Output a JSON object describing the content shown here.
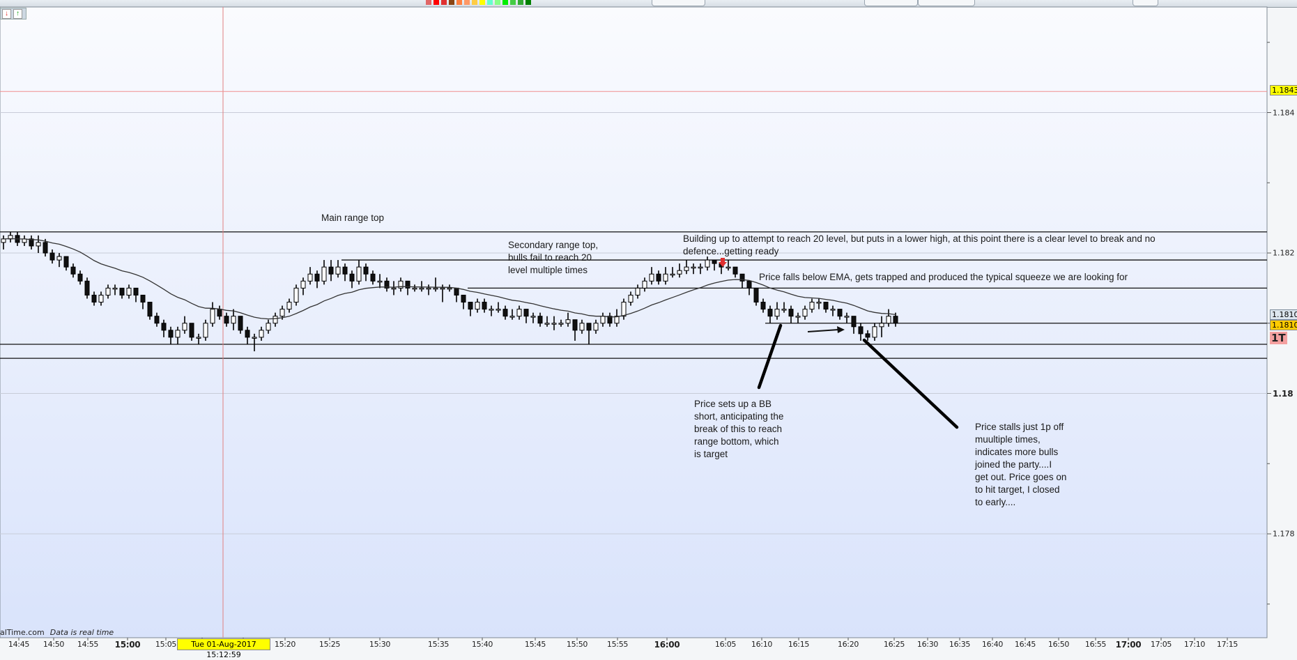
{
  "toolbar": {
    "color_swatches": [
      "#e06666",
      "#ff0000",
      "#e03030",
      "#8b4513",
      "#ff8040",
      "#ff9966",
      "#ffcc44",
      "#ffff00",
      "#66ffcc",
      "#88ff88",
      "#00ee00",
      "#44cc44",
      "#33aa33",
      "#008000"
    ]
  },
  "order_buttons": {
    "sell_icon": "red-down-arrow-icon",
    "buy_icon": "green-up-arrow-icon",
    "sell_glyph": "↓",
    "buy_glyph": "↑"
  },
  "footer": {
    "source": "alTime.com",
    "status": "Data is real time"
  },
  "crosshair": {
    "date_label": "Tue 01-Aug-2017 15:12:59",
    "price": 1.1843,
    "price_label": "1.1843",
    "color": "#ff0000"
  },
  "price_labels": {
    "last_price": "1.18109",
    "level": "1.1810",
    "timeframe": "1T"
  },
  "annotations": {
    "main_range_top": [
      "Main range top"
    ],
    "secondary_range_top": [
      "Secondary range top,",
      "bulls fail to reach 20",
      "level multiple times"
    ],
    "building_up": [
      "Building up to attempt to reach 20 level, but puts in a lower high, at this point there is a clear level to break and no",
      "defence...getting ready"
    ],
    "ema_note": [
      "Price falls below EMA, gets trapped and produced the typical squeeze we are looking for"
    ],
    "bb_short": [
      "Price sets up a BB",
      "short, anticipating the",
      "break of this to reach",
      "range bottom, which",
      "is target"
    ],
    "stalls": [
      "Price stalls just 1p off",
      "muultiple times,",
      "indicates more bulls",
      "joined the party....I",
      "get out. Price goes on",
      "to hit target, I closed",
      "to early...."
    ]
  },
  "chart_data": {
    "type": "candlestick",
    "indicator": "EMA",
    "y_ticks": [
      "1.184",
      "1.182",
      "1.18",
      "1.178"
    ],
    "y_tick_values": [
      1.184,
      1.182,
      1.18,
      1.178
    ],
    "x_ticks": [
      "14:45",
      "14:50",
      "14:55",
      "15:00",
      "15:05",
      "15:20",
      "15:25",
      "15:30",
      "15:35",
      "15:40",
      "15:45",
      "15:50",
      "15:55",
      "16:00",
      "16:05",
      "16:10",
      "16:15",
      "16:20",
      "16:25",
      "16:30",
      "16:35",
      "16:40",
      "16:45",
      "16:50",
      "16:55",
      "17:00",
      "17:05",
      "17:10",
      "17:15"
    ],
    "x_ticks_bold": [
      "15:00",
      "16:00",
      "17:00"
    ],
    "horizontal_levels": [
      1.1823,
      1.1819,
      1.1815,
      1.181,
      1.1807,
      1.1805
    ],
    "candles_ohlc": [
      [
        1.18215,
        1.18225,
        1.18205,
        1.1822
      ],
      [
        1.1822,
        1.1823,
        1.18215,
        1.18225
      ],
      [
        1.18225,
        1.1823,
        1.1821,
        1.18215
      ],
      [
        1.18215,
        1.18225,
        1.1821,
        1.1822
      ],
      [
        1.1822,
        1.18225,
        1.18205,
        1.1821
      ],
      [
        1.1821,
        1.18225,
        1.182,
        1.18215
      ],
      [
        1.18215,
        1.1822,
        1.18195,
        1.182
      ],
      [
        1.182,
        1.18205,
        1.18185,
        1.1819
      ],
      [
        1.1819,
        1.182,
        1.1818,
        1.18195
      ],
      [
        1.18195,
        1.18195,
        1.18175,
        1.1818
      ],
      [
        1.1818,
        1.18185,
        1.18165,
        1.1817
      ],
      [
        1.1817,
        1.18175,
        1.18155,
        1.1816
      ],
      [
        1.1816,
        1.18165,
        1.18135,
        1.1814
      ],
      [
        1.1814,
        1.18145,
        1.18125,
        1.1813
      ],
      [
        1.1813,
        1.18145,
        1.18125,
        1.1814
      ],
      [
        1.1814,
        1.18155,
        1.18135,
        1.1815
      ],
      [
        1.1815,
        1.18155,
        1.1814,
        1.1815
      ],
      [
        1.1815,
        1.1815,
        1.18135,
        1.1814
      ],
      [
        1.1814,
        1.18155,
        1.18135,
        1.1815
      ],
      [
        1.1815,
        1.1815,
        1.1813,
        1.1814
      ],
      [
        1.1814,
        1.1814,
        1.1812,
        1.1813
      ],
      [
        1.1813,
        1.1813,
        1.18105,
        1.1811
      ],
      [
        1.1811,
        1.18115,
        1.18095,
        1.181
      ],
      [
        1.181,
        1.18105,
        1.1808,
        1.1809
      ],
      [
        1.1809,
        1.18095,
        1.1807,
        1.1808
      ],
      [
        1.1808,
        1.18095,
        1.1807,
        1.1809
      ],
      [
        1.1809,
        1.1811,
        1.18085,
        1.181
      ],
      [
        1.181,
        1.181,
        1.18075,
        1.1808
      ],
      [
        1.1808,
        1.18085,
        1.1807,
        1.1808
      ],
      [
        1.1808,
        1.18105,
        1.18075,
        1.181
      ],
      [
        1.181,
        1.1813,
        1.18095,
        1.1812
      ],
      [
        1.1812,
        1.18125,
        1.18105,
        1.1811
      ],
      [
        1.1811,
        1.18115,
        1.18095,
        1.181
      ],
      [
        1.181,
        1.1812,
        1.1809,
        1.1811
      ],
      [
        1.1811,
        1.1811,
        1.18085,
        1.1809
      ],
      [
        1.1809,
        1.18095,
        1.1807,
        1.1808
      ],
      [
        1.1808,
        1.18085,
        1.1806,
        1.1808
      ],
      [
        1.1808,
        1.18095,
        1.18075,
        1.1809
      ],
      [
        1.1809,
        1.18105,
        1.18085,
        1.181
      ],
      [
        1.181,
        1.18115,
        1.18095,
        1.1811
      ],
      [
        1.1811,
        1.18125,
        1.18105,
        1.1812
      ],
      [
        1.1812,
        1.18135,
        1.18115,
        1.1813
      ],
      [
        1.1813,
        1.18155,
        1.18125,
        1.1815
      ],
      [
        1.1815,
        1.18165,
        1.1814,
        1.1816
      ],
      [
        1.1816,
        1.1818,
        1.18155,
        1.1817
      ],
      [
        1.1817,
        1.18175,
        1.1815,
        1.1816
      ],
      [
        1.1816,
        1.1819,
        1.18155,
        1.1818
      ],
      [
        1.1818,
        1.1819,
        1.1816,
        1.1817
      ],
      [
        1.1817,
        1.1819,
        1.18165,
        1.1818
      ],
      [
        1.1818,
        1.18185,
        1.1816,
        1.1817
      ],
      [
        1.1817,
        1.18175,
        1.1815,
        1.1816
      ],
      [
        1.1816,
        1.1819,
        1.18155,
        1.1818
      ],
      [
        1.1818,
        1.18185,
        1.1816,
        1.1817
      ],
      [
        1.1817,
        1.18175,
        1.18155,
        1.1816
      ],
      [
        1.1816,
        1.1817,
        1.1815,
        1.1816
      ],
      [
        1.1816,
        1.18165,
        1.18145,
        1.1815
      ],
      [
        1.1815,
        1.1816,
        1.1814,
        1.1815
      ],
      [
        1.1815,
        1.18165,
        1.18145,
        1.1816
      ],
      [
        1.1816,
        1.1816,
        1.1814,
        1.1815
      ],
      [
        1.1815,
        1.18155,
        1.18145,
        1.1815
      ],
      [
        1.1815,
        1.1816,
        1.18145,
        1.1815
      ],
      [
        1.1815,
        1.18155,
        1.1814,
        1.1815
      ],
      [
        1.1815,
        1.18165,
        1.18145,
        1.1815
      ],
      [
        1.1815,
        1.18155,
        1.1813,
        1.1815
      ],
      [
        1.1815,
        1.18155,
        1.18145,
        1.1815
      ],
      [
        1.1815,
        1.1815,
        1.1813,
        1.1814
      ],
      [
        1.1814,
        1.1814,
        1.1812,
        1.1813
      ],
      [
        1.1813,
        1.1813,
        1.1811,
        1.1812
      ],
      [
        1.1812,
        1.18135,
        1.18115,
        1.1813
      ],
      [
        1.1813,
        1.18135,
        1.18115,
        1.1812
      ],
      [
        1.1812,
        1.18125,
        1.1811,
        1.1812
      ],
      [
        1.1812,
        1.1813,
        1.18115,
        1.1812
      ],
      [
        1.1812,
        1.18125,
        1.18105,
        1.1811
      ],
      [
        1.1811,
        1.1812,
        1.18105,
        1.1811
      ],
      [
        1.1811,
        1.18125,
        1.18105,
        1.1812
      ],
      [
        1.1812,
        1.1812,
        1.181,
        1.1811
      ],
      [
        1.1811,
        1.18115,
        1.181,
        1.1811
      ],
      [
        1.1811,
        1.18115,
        1.18095,
        1.181
      ],
      [
        1.181,
        1.1811,
        1.18095,
        1.181
      ],
      [
        1.181,
        1.1811,
        1.1809,
        1.181
      ],
      [
        1.181,
        1.18105,
        1.18095,
        1.181
      ],
      [
        1.181,
        1.18115,
        1.18095,
        1.18105
      ],
      [
        1.18105,
        1.18105,
        1.18075,
        1.1809
      ],
      [
        1.1809,
        1.18105,
        1.18085,
        1.181
      ],
      [
        1.181,
        1.181,
        1.1807,
        1.1809
      ],
      [
        1.1809,
        1.18105,
        1.18085,
        1.181
      ],
      [
        1.181,
        1.18115,
        1.18095,
        1.1811
      ],
      [
        1.1811,
        1.18115,
        1.18095,
        1.181
      ],
      [
        1.181,
        1.1812,
        1.18095,
        1.1811
      ],
      [
        1.1811,
        1.18135,
        1.18105,
        1.1813
      ],
      [
        1.1813,
        1.18145,
        1.18125,
        1.1814
      ],
      [
        1.1814,
        1.18155,
        1.18135,
        1.1815
      ],
      [
        1.1815,
        1.18165,
        1.18145,
        1.1816
      ],
      [
        1.1816,
        1.1818,
        1.18155,
        1.1817
      ],
      [
        1.1817,
        1.18175,
        1.18155,
        1.1816
      ],
      [
        1.1816,
        1.1818,
        1.18155,
        1.1817
      ],
      [
        1.1817,
        1.1818,
        1.18165,
        1.1817
      ],
      [
        1.1817,
        1.18185,
        1.18165,
        1.18175
      ],
      [
        1.18175,
        1.1819,
        1.1817,
        1.1818
      ],
      [
        1.1818,
        1.18185,
        1.1817,
        1.1818
      ],
      [
        1.1818,
        1.18185,
        1.1817,
        1.1818
      ],
      [
        1.1818,
        1.18195,
        1.18175,
        1.1819
      ],
      [
        1.1819,
        1.1819,
        1.18175,
        1.18185
      ],
      [
        1.18185,
        1.1819,
        1.1817,
        1.1818
      ],
      [
        1.1818,
        1.1819,
        1.18175,
        1.1818
      ],
      [
        1.1818,
        1.1818,
        1.18165,
        1.1817
      ],
      [
        1.1817,
        1.1817,
        1.1815,
        1.1816
      ],
      [
        1.1816,
        1.1816,
        1.1814,
        1.1815
      ],
      [
        1.1815,
        1.1815,
        1.18125,
        1.1813
      ],
      [
        1.1813,
        1.18135,
        1.18115,
        1.1812
      ],
      [
        1.1812,
        1.18125,
        1.181,
        1.1811
      ],
      [
        1.1811,
        1.1813,
        1.18105,
        1.1812
      ],
      [
        1.1812,
        1.1813,
        1.18115,
        1.1812
      ],
      [
        1.1812,
        1.18125,
        1.181,
        1.1811
      ],
      [
        1.1811,
        1.18115,
        1.181,
        1.1811
      ],
      [
        1.1811,
        1.18125,
        1.18105,
        1.1812
      ],
      [
        1.1812,
        1.18135,
        1.18115,
        1.1813
      ],
      [
        1.1813,
        1.18135,
        1.1812,
        1.1813
      ],
      [
        1.1813,
        1.1813,
        1.18115,
        1.1812
      ],
      [
        1.1812,
        1.18125,
        1.1811,
        1.1812
      ],
      [
        1.1812,
        1.1812,
        1.18105,
        1.1811
      ],
      [
        1.1811,
        1.18115,
        1.181,
        1.1811
      ],
      [
        1.1811,
        1.1811,
        1.18085,
        1.18095
      ],
      [
        1.18095,
        1.181,
        1.18075,
        1.18085
      ],
      [
        1.18085,
        1.1809,
        1.18075,
        1.1808
      ],
      [
        1.1808,
        1.181,
        1.18075,
        1.18095
      ],
      [
        1.18095,
        1.1811,
        1.1808,
        1.181
      ],
      [
        1.181,
        1.1812,
        1.18095,
        1.1811
      ],
      [
        1.1811,
        1.18115,
        1.18095,
        1.181
      ]
    ]
  }
}
